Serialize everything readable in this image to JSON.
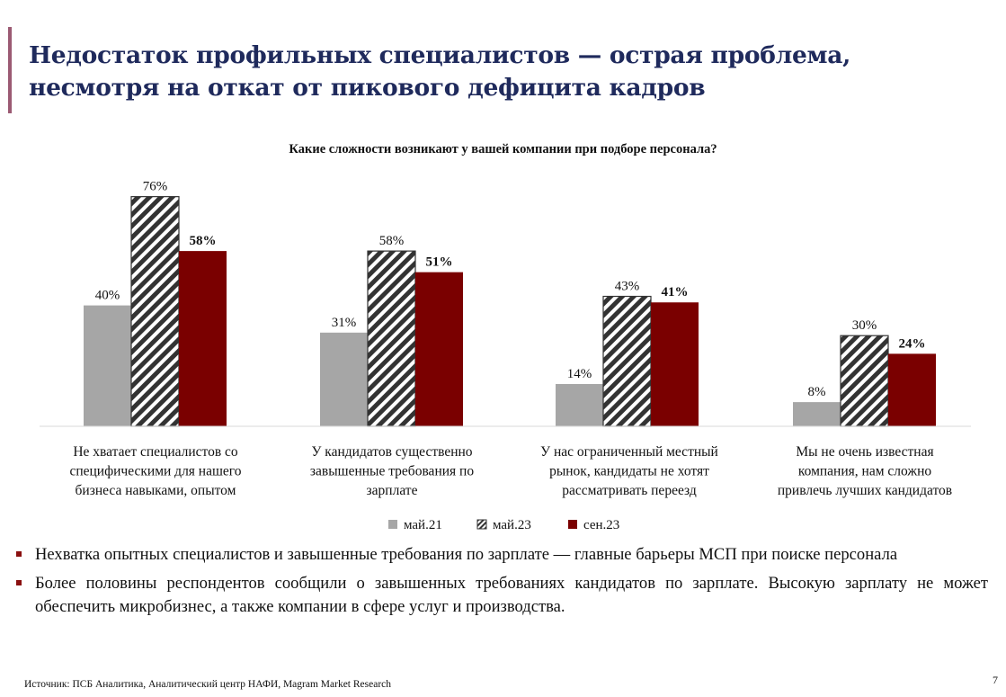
{
  "title": "Недостаток профильных специалистов — острая проблема, несмотря на откат от пикового дефицита кадров",
  "chart_data": {
    "type": "bar",
    "title": "Какие сложности возникают у вашей компании при подборе персонала?",
    "categories": [
      [
        "Не хватает специалистов со",
        "специфическими для нашего",
        "бизнеса навыками, опытом"
      ],
      [
        "У кандидатов существенно",
        "завышенные требования по",
        "зарплате"
      ],
      [
        "У нас ограниченный местный",
        "рынок, кандидаты не хотят",
        "рассматривать переезд"
      ],
      [
        "Мы не очень известная",
        "компания, нам сложно",
        "привлечь лучших кандидатов"
      ]
    ],
    "series": [
      {
        "name": "май.21",
        "values": [
          40,
          31,
          14,
          8
        ],
        "color": "#a6a6a6",
        "pattern": "solid",
        "label_bold": false
      },
      {
        "name": "май.23",
        "values": [
          76,
          58,
          43,
          30
        ],
        "color": "#ffffff",
        "pattern": "hatch",
        "label_bold": false
      },
      {
        "name": "сен.23",
        "values": [
          58,
          51,
          41,
          24
        ],
        "color": "#7a0000",
        "pattern": "solid",
        "label_bold": true
      }
    ],
    "value_suffix": "%",
    "ylim": [
      0,
      100
    ],
    "legend": "bottom-center"
  },
  "bullets": [
    "Нехватка опытных специалистов и завышенные требования по зарплате — главные барьеры МСП при поиске персонала",
    "Более половины респондентов сообщили о завышенных требованиях кандидатов по зарплате. Высокую зарплату не может обеспечить микробизнес, а также компании в сфере услуг и производства."
  ],
  "source": "Источник: ПСБ Аналитика, Аналитический центр НАФИ, Magram Market Research",
  "page_number": "7"
}
